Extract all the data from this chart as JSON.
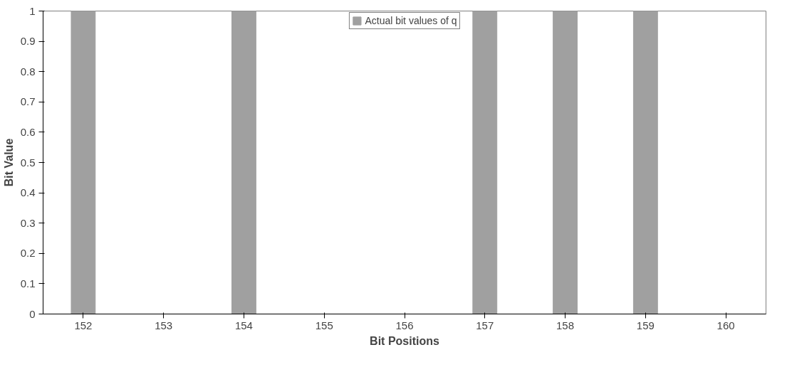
{
  "chart_data": {
    "type": "bar",
    "xlabel": "Bit Positions",
    "ylabel": "Bit Value",
    "categories": [
      "152",
      "153",
      "154",
      "155",
      "156",
      "157",
      "158",
      "159",
      "160"
    ],
    "series": [
      {
        "name": "Actual bit values of q",
        "color": "#a0a0a0",
        "values": [
          1,
          0,
          1,
          0,
          0,
          1,
          1,
          1,
          0
        ]
      }
    ],
    "ylim": [
      0,
      1
    ],
    "yticks": [
      0,
      0.1,
      0.2,
      0.3,
      0.4,
      0.5,
      0.6,
      0.7,
      0.8,
      0.9,
      1
    ],
    "grid": false,
    "legend": "top"
  }
}
